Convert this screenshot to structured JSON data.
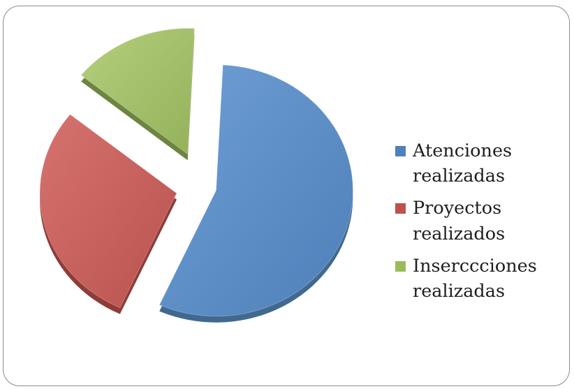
{
  "chart_data": {
    "type": "pie",
    "title": "",
    "exploded": true,
    "style": "3d",
    "legend_position": "right",
    "slices": [
      {
        "label": "Atenciones realizadas",
        "value": 56,
        "color": "#5b8fc9"
      },
      {
        "label": "Proyectos realizados",
        "value": 29,
        "color": "#c9635f"
      },
      {
        "label": "Inserciones realizadas",
        "value": 15,
        "color": "#a4c06a"
      }
    ],
    "legend": [
      {
        "line1": "Atenciones",
        "line2": "realizadas",
        "color": "#4f81bd"
      },
      {
        "line1": "Proyectos",
        "line2": "realizados",
        "color": "#c0504d"
      },
      {
        "line1": "Inserccciones",
        "line2": "realizadas",
        "color": "#9bbb59"
      }
    ]
  }
}
